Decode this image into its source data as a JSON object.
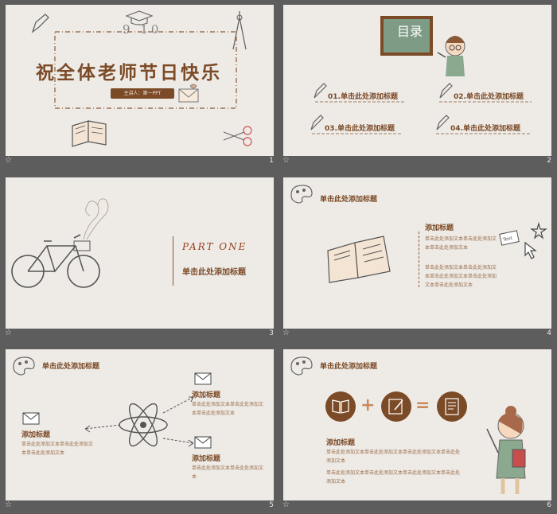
{
  "slides": [
    {
      "num": "1",
      "title": "祝全体老师节日快乐",
      "presenter": "主讲人：第一PPT",
      "numbers": "9 10"
    },
    {
      "num": "2",
      "toc_title": "目录",
      "items": [
        "01.单击此处添加标题",
        "02.单击此处添加标题",
        "03.单击此处添加标题",
        "04.单击此处添加标题"
      ]
    },
    {
      "num": "3",
      "part": "PART ONE",
      "subtitle": "单击此处添加标题"
    },
    {
      "num": "4",
      "header": "单击此处添加标题",
      "item_title": "添加标题",
      "text1": "单击此处添加文本单击此处添加文本单击此处添加文本",
      "text2": "单击此处添加文本单击此处添加文本单击此处添加文本单击此处添加文本单击此处添加文本",
      "note": "Text"
    },
    {
      "num": "5",
      "header": "单击此处添加标题",
      "left_title": "添加标题",
      "left_text": "单击此处添加文本单击此处添加文本单击此处添加文本",
      "right1_title": "添加标题",
      "right1_text": "单击此处添加文本单击此处添加文本单击此处添加文本",
      "right2_title": "添加标题",
      "right2_text": "单击此处添加文本单击此处添加文本"
    },
    {
      "num": "6",
      "header": "单击此处添加标题",
      "item_title": "添加标题",
      "text1": "单击此处添加文本单击此处添加文本单击此处添加文本单击此处添加文本",
      "text2": "单击此处添加文本单击此处添加文本单击此处添加文本单击此处添加文本"
    }
  ],
  "colors": {
    "brown": "#7b4a26",
    "paper": "#eeebe7",
    "frame": "#5d5d5d"
  }
}
